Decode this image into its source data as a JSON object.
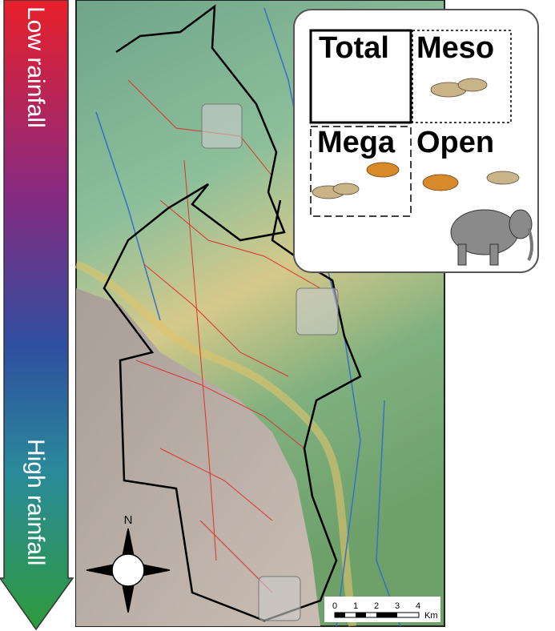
{
  "arrow": {
    "top_label": "Low rainfall",
    "bottom_label": "High rainfall"
  },
  "legend": {
    "panels": [
      "Total",
      "Meso",
      "Mega",
      "Open"
    ]
  },
  "compass": {
    "north": "N"
  },
  "scale_bar": {
    "ticks": [
      0,
      1,
      2,
      3,
      4
    ],
    "unit": "Km"
  }
}
